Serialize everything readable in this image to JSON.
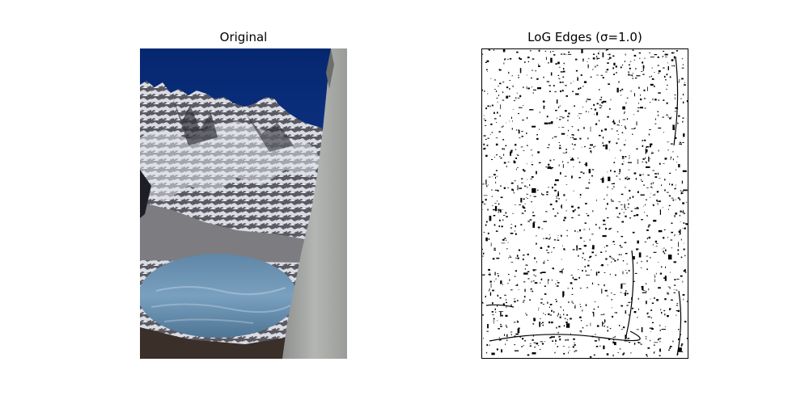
{
  "panels": [
    {
      "title": "Original"
    },
    {
      "title": "LoG Edges (σ=1.0)"
    }
  ],
  "colors": {
    "sky": "#0e2f86",
    "rock_dark": "#3e3d44",
    "snow": "#e7e9ee",
    "lake": "#6f95b4",
    "cliff": "#a8aaa8",
    "edge": "#000000",
    "background": "#ffffff"
  }
}
